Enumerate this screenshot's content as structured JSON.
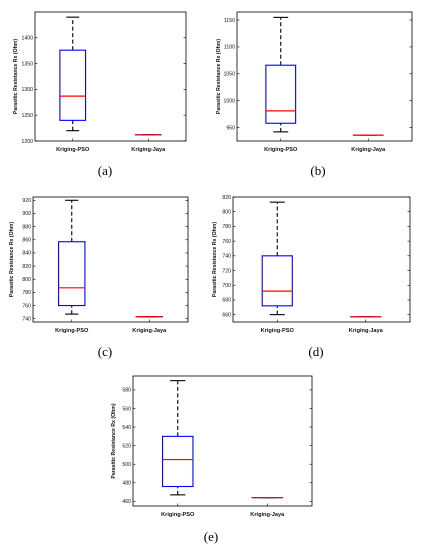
{
  "colors": {
    "box": "#0000ff",
    "median": "#ff0000",
    "whisker": "#000000",
    "axes": "#000000"
  },
  "chart_data": [
    {
      "type": "boxplot",
      "panel_label": "(a)",
      "ylabel": "Parasitic Resistance Rx (Ohm)",
      "categories": [
        "Kriging-PSO",
        "Kriging-Jaya"
      ],
      "ylim": [
        1200,
        1450
      ],
      "yticks": [
        1200,
        1250,
        1300,
        1350,
        1400
      ],
      "boxes": [
        {
          "name": "Kriging-PSO",
          "whislo": 1220,
          "q1": 1240,
          "med": 1287,
          "q3": 1376,
          "whishi": 1440
        },
        {
          "name": "Kriging-Jaya",
          "whislo": 1212,
          "q1": 1212,
          "med": 1212,
          "q3": 1212,
          "whishi": 1212
        }
      ]
    },
    {
      "type": "boxplot",
      "panel_label": "(b)",
      "ylabel": "Parasitic Resistance Rx (Ohm)",
      "categories": [
        "Kriging-PSO",
        "Kriging-Jaya"
      ],
      "ylim": [
        925,
        1165
      ],
      "yticks": [
        950,
        1000,
        1050,
        1100,
        1150
      ],
      "boxes": [
        {
          "name": "Kriging-PSO",
          "whislo": 942,
          "q1": 958,
          "med": 981,
          "q3": 1066,
          "whishi": 1155
        },
        {
          "name": "Kriging-Jaya",
          "whislo": 936,
          "q1": 936,
          "med": 936,
          "q3": 936,
          "whishi": 936
        }
      ]
    },
    {
      "type": "boxplot",
      "panel_label": "(c)",
      "ylabel": "Parasitic Resistance Rx (Ohm)",
      "categories": [
        "Kriging-PSO",
        "Kriging-Jaya"
      ],
      "ylim": [
        735,
        925
      ],
      "yticks": [
        740,
        760,
        780,
        800,
        820,
        840,
        860,
        880,
        900,
        920
      ],
      "boxes": [
        {
          "name": "Kriging-PSO",
          "whislo": 747,
          "q1": 760,
          "med": 787,
          "q3": 857,
          "whishi": 920
        },
        {
          "name": "Kriging-Jaya",
          "whislo": 743,
          "q1": 743,
          "med": 743,
          "q3": 743,
          "whishi": 743
        }
      ]
    },
    {
      "type": "boxplot",
      "panel_label": "(d)",
      "ylabel": "Parasitic Resistance Rx (Ohm)",
      "categories": [
        "Kriging-PSO",
        "Kriging-Jaya"
      ],
      "ylim": [
        650,
        820
      ],
      "yticks": [
        660,
        680,
        700,
        720,
        740,
        760,
        780,
        800,
        820
      ],
      "boxes": [
        {
          "name": "Kriging-PSO",
          "whislo": 660,
          "q1": 672,
          "med": 692,
          "q3": 740,
          "whishi": 813
        },
        {
          "name": "Kriging-Jaya",
          "whislo": 657,
          "q1": 657,
          "med": 657,
          "q3": 657,
          "whishi": 657
        }
      ]
    },
    {
      "type": "boxplot",
      "panel_label": "(e)",
      "ylabel": "Parasitic Resistance Rx (Ohm)",
      "categories": [
        "Kriging-PSO",
        "Kriging-Jaya"
      ],
      "ylim": [
        455,
        595
      ],
      "yticks": [
        460,
        480,
        500,
        520,
        540,
        560,
        580
      ],
      "boxes": [
        {
          "name": "Kriging-PSO",
          "whislo": 467,
          "q1": 476,
          "med": 505,
          "q3": 530,
          "whishi": 590
        },
        {
          "name": "Kriging-Jaya",
          "whislo": 464,
          "q1": 464,
          "med": 464,
          "q3": 464,
          "whishi": 464
        }
      ]
    }
  ]
}
